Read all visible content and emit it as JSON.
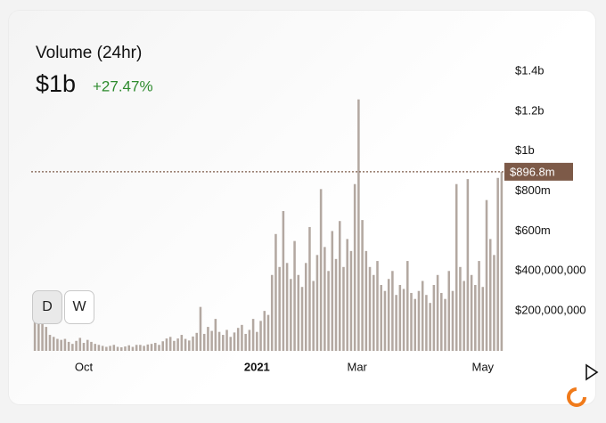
{
  "header": {
    "title": "Volume (24hr)",
    "value": "$1b",
    "change": "+27.47%"
  },
  "buttons": [
    "D",
    "W"
  ],
  "chart_data": {
    "type": "bar",
    "color": "#b3a8a1",
    "values": [
      160000000.0,
      150000000.0,
      140000000.0,
      120000000.0,
      80000000.0,
      70000000.0,
      60000000.0,
      55000000.0,
      60000000.0,
      45000000.0,
      35000000.0,
      50000000.0,
      65000000.0,
      40000000.0,
      55000000.0,
      45000000.0,
      35000000.0,
      30000000.0,
      25000000.0,
      20000000.0,
      25000000.0,
      30000000.0,
      20000000.0,
      18000000.0,
      22000000.0,
      28000000.0,
      20000000.0,
      30000000.0,
      30000000.0,
      25000000.0,
      32000000.0,
      35000000.0,
      40000000.0,
      30000000.0,
      48000000.0,
      62000000.0,
      70000000.0,
      50000000.0,
      62000000.0,
      80000000.0,
      60000000.0,
      52000000.0,
      72000000.0,
      90000000.0,
      220000000.0,
      85000000.0,
      120000000.0,
      100000000.0,
      160000000.0,
      95000000.0,
      80000000.0,
      105000000.0,
      70000000.0,
      92000000.0,
      115000000.0,
      130000000.0,
      85000000.0,
      105000000.0,
      160000000.0,
      95000000.0,
      150000000.0,
      200000000.0,
      180000000.0,
      380000000.0,
      585000000.0,
      420000000.0,
      700000000.0,
      440000000.0,
      360000000.0,
      550000000.0,
      380000000.0,
      320000000.0,
      440000000.0,
      620000000.0,
      350000000.0,
      480000000.0,
      810000000.0,
      520000000.0,
      400000000.0,
      600000000.0,
      460000000.0,
      650000000.0,
      420000000.0,
      560000000.0,
      500000000.0,
      835000000.0,
      1259000000.0,
      655000000.0,
      500000000.0,
      420000000.0,
      380000000.0,
      450000000.0,
      330000000.0,
      300000000.0,
      360000000.0,
      400000000.0,
      280000000.0,
      330000000.0,
      310000000.0,
      450000000.0,
      290000000.0,
      260000000.0,
      300000000.0,
      350000000.0,
      280000000.0,
      240000000.0,
      330000000.0,
      380000000.0,
      290000000.0,
      260000000.0,
      400000000.0,
      300000000.0,
      835000000.0,
      420000000.0,
      350000000.0,
      860000000.0,
      380000000.0,
      330000000.0,
      450000000.0,
      320000000.0,
      755000000.0,
      560000000.0,
      480000000.0,
      866000000.0,
      896800000.0
    ],
    "xlim": [
      -0.5,
      124.5
    ],
    "xticks": [
      {
        "value": 13,
        "label": "Oct"
      },
      {
        "value": 59,
        "label": "2021"
      },
      {
        "value": 85.6,
        "label": "Mar"
      },
      {
        "value": 119,
        "label": "May"
      }
    ],
    "ylim": [
      0,
      1400000000
    ],
    "yticks": [
      {
        "value": 200000000,
        "label": "$200,000,000"
      },
      {
        "value": 400000000,
        "label": "$400,000,000"
      },
      {
        "value": 600000000,
        "label": "$600m"
      },
      {
        "value": 800000000,
        "label": "$800m"
      },
      {
        "value": 1000000000,
        "label": "$1b"
      },
      {
        "value": 1200000000,
        "label": "$1.2b"
      },
      {
        "value": 1400000000,
        "label": "$1.4b"
      }
    ],
    "reference_value": 896800000,
    "reference_label": "$896.8m",
    "reference_color": "#7d5a48"
  }
}
